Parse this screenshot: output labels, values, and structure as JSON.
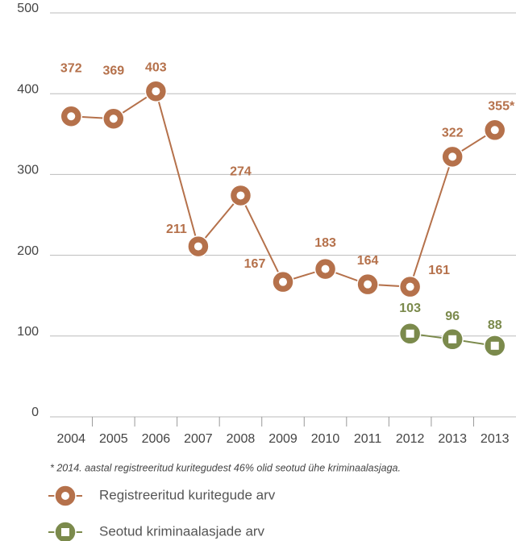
{
  "chart_data": {
    "type": "line",
    "categories": [
      "2004",
      "2005",
      "2006",
      "2007",
      "2008",
      "2009",
      "2010",
      "2011",
      "2012",
      "2013",
      "2013"
    ],
    "series": [
      {
        "name": "Registreeritud kuritegude arv",
        "color": "#b5714b",
        "marker": "circle",
        "values": [
          372,
          369,
          403,
          211,
          274,
          167,
          183,
          164,
          161,
          322,
          355
        ],
        "value_labels": [
          "372",
          "369",
          "403",
          "211",
          "274",
          "167",
          "183",
          "164",
          "161",
          "322",
          "355*"
        ]
      },
      {
        "name": "Seotud kriminaalasjade arv",
        "color": "#7b8a4c",
        "marker": "square",
        "values": [
          null,
          null,
          null,
          null,
          null,
          null,
          null,
          null,
          103,
          96,
          88
        ]
      }
    ],
    "ylim": [
      0,
      500
    ],
    "yticks": [
      0,
      100,
      200,
      300,
      400,
      500
    ],
    "grid": true,
    "footnote": "* 2014. aastal registreeritud kuritegudest 46% olid seotud ühe kriminaalasjaga."
  }
}
